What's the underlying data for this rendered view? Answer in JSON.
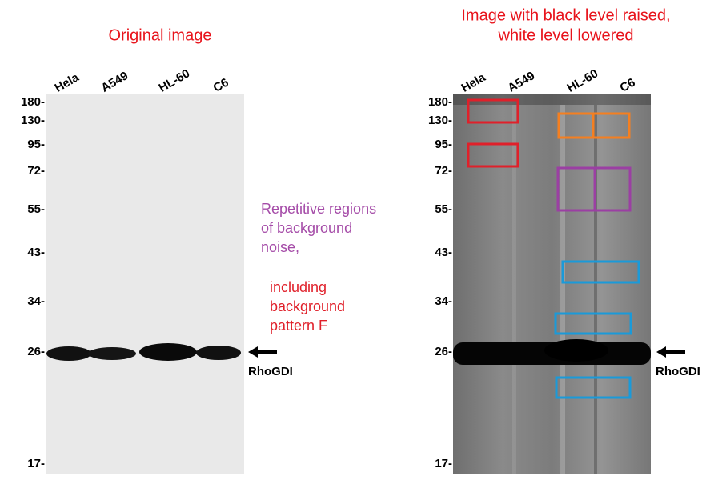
{
  "left_panel": {
    "title": "Original image",
    "lanes": [
      "Hela",
      "A549",
      "HL-60",
      "C6"
    ],
    "markers": [
      "180-",
      "130-",
      "95-",
      "72-",
      "55-",
      "43-",
      "34-",
      "26-",
      "17-"
    ],
    "band_label": "RhoGDI"
  },
  "right_panel": {
    "title_lines": [
      "Image with black level raised,",
      "white level lowered"
    ],
    "lanes": [
      "Hela",
      "A549",
      "HL-60",
      "C6"
    ],
    "markers": [
      "180-",
      "130-",
      "95-",
      "72-",
      "55-",
      "43-",
      "34-",
      "26-",
      "17-"
    ],
    "band_label": "RhoGDI"
  },
  "annotations": {
    "noise_lines": [
      "Repetitive regions",
      "of background",
      "noise,"
    ],
    "pattern_lines": [
      "including",
      "background",
      "pattern F"
    ]
  }
}
